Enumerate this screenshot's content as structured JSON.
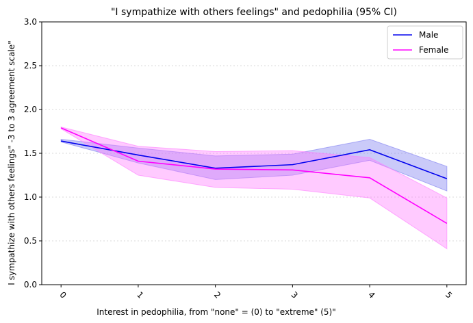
{
  "chart_data": {
    "type": "line",
    "title": "\"I sympathize with others feelings\" and pedophilia (95% CI)",
    "xlabel": "Interest in pedophilia, from \"none\" = (0) to \"extreme\" (5)\"",
    "ylabel": "I sympathize with others feelings\" -3 to 3 agreement scale\"",
    "x": [
      0,
      1,
      2,
      3,
      4,
      5
    ],
    "x_ticks": [
      "0",
      "1",
      "2",
      "3",
      "4",
      "5"
    ],
    "y_ticks": [
      "0.0",
      "0.5",
      "1.0",
      "1.5",
      "2.0",
      "2.5",
      "3.0"
    ],
    "xlim": [
      -0.25,
      5.25
    ],
    "ylim": [
      0,
      3
    ],
    "grid": "horizontal dotted",
    "legend": "top-right",
    "series": [
      {
        "name": "Male",
        "color": "#0000ee",
        "band_color": "#7b7bf0",
        "values": [
          1.64,
          1.48,
          1.33,
          1.37,
          1.54,
          1.21
        ],
        "ci_lower": [
          1.63,
          1.39,
          1.2,
          1.25,
          1.42,
          1.07
        ],
        "ci_upper": [
          1.66,
          1.56,
          1.47,
          1.49,
          1.66,
          1.35
        ]
      },
      {
        "name": "Female",
        "color": "#ff00ff",
        "band_color": "#ff7bff",
        "values": [
          1.79,
          1.41,
          1.32,
          1.31,
          1.22,
          0.7
        ],
        "ci_lower": [
          1.78,
          1.25,
          1.11,
          1.09,
          0.99,
          0.41
        ],
        "ci_upper": [
          1.8,
          1.58,
          1.52,
          1.53,
          1.45,
          0.99
        ]
      }
    ]
  }
}
